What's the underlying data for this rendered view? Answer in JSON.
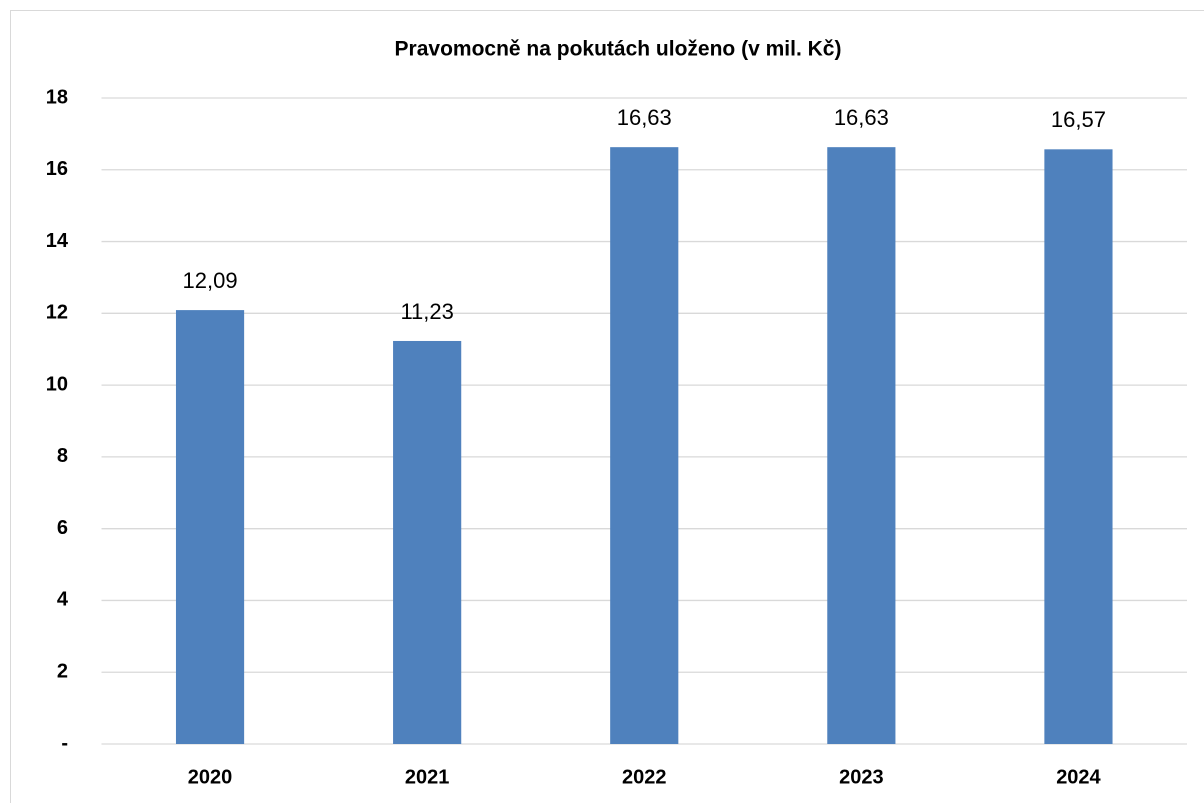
{
  "chart_data": {
    "type": "bar",
    "title": "Pravomocně na pokutách uloženo (v mil. Kč)",
    "categories": [
      "2020",
      "2021",
      "2022",
      "2023",
      "2024"
    ],
    "values": [
      12.09,
      11.23,
      16.63,
      16.63,
      16.57
    ],
    "value_labels": [
      "12,09",
      "11,23",
      "16,63",
      "16,63",
      "16,57"
    ],
    "color": "#4f81bd",
    "ylim": [
      0,
      18
    ],
    "yticks": [
      {
        "value": 0,
        "label": "-"
      },
      2,
      4,
      6,
      8,
      10,
      12,
      14,
      16,
      18
    ],
    "grid": true
  }
}
